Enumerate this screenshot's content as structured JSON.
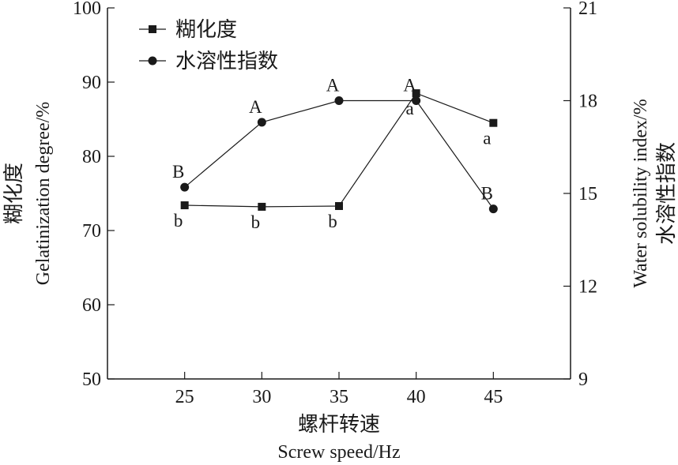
{
  "chart_data": {
    "type": "line",
    "x": [
      25,
      30,
      35,
      40,
      45
    ],
    "xlim": [
      20,
      50
    ],
    "xlabel_cn": "螺杆转速",
    "xlabel_en": "Screw speed/Hz",
    "ylabel_left_cn": "糊化度",
    "ylabel_left_en": "Gelatinization degree/%",
    "ylabel_right_en": "Water solubility index/%",
    "ylabel_right_cn": "水溶性指数",
    "ylim_left": [
      50,
      100
    ],
    "yticks_left": [
      50,
      60,
      70,
      80,
      90,
      100
    ],
    "ylim_right": [
      9,
      21
    ],
    "yticks_right": [
      9,
      12,
      15,
      18,
      21
    ],
    "grid": false,
    "legend_position": "top-left",
    "series": [
      {
        "name": "糊化度",
        "axis": "left",
        "marker": "square",
        "values": [
          73.4,
          73.2,
          73.3,
          88.5,
          84.5
        ],
        "labels": [
          "b",
          "b",
          "b",
          "a",
          "a"
        ],
        "label_side": [
          "below",
          "below",
          "below",
          "below",
          "below"
        ]
      },
      {
        "name": "水溶性指数",
        "axis": "right",
        "marker": "circle",
        "values": [
          15.2,
          17.3,
          18.0,
          18.0,
          14.5
        ],
        "labels": [
          "B",
          "A",
          "A",
          "A",
          "B"
        ],
        "label_side": [
          "above",
          "above",
          "above",
          "above",
          "above"
        ]
      }
    ]
  }
}
